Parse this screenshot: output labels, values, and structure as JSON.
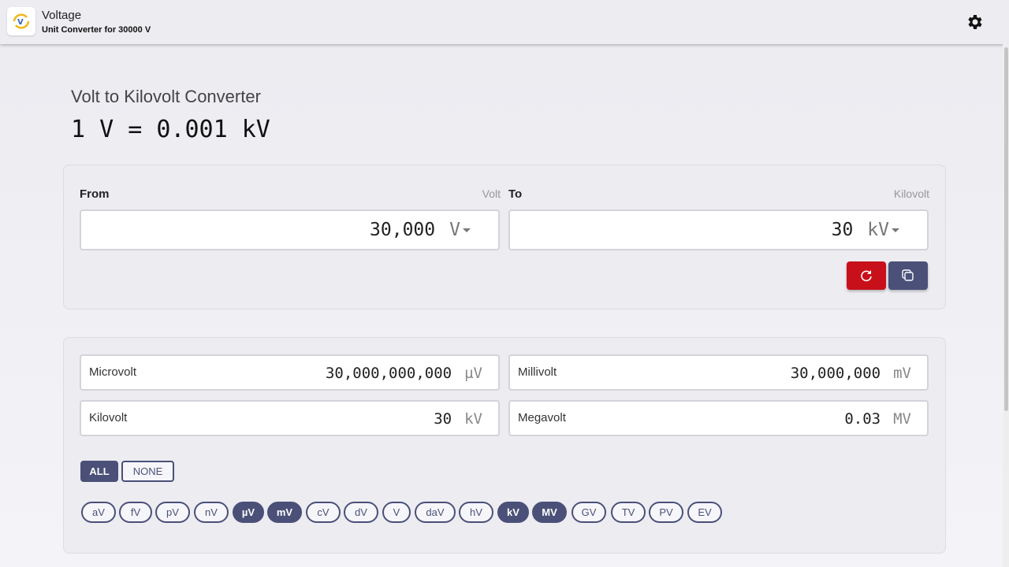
{
  "header": {
    "title": "Voltage",
    "subtitle": "Unit Converter for 30000 V",
    "logo_icon": "refresh-volt-icon",
    "settings_icon": "gear-icon"
  },
  "main": {
    "title": "Volt to Kilovolt Converter",
    "formula": "1 V = 0.001 kV"
  },
  "converter": {
    "from_label": "From",
    "from_unit_name": "Volt",
    "from_value": "30,000",
    "from_unit": "V",
    "to_label": "To",
    "to_unit_name": "Kilovolt",
    "to_value": "30",
    "to_unit": "kV",
    "reset_icon": "refresh-icon",
    "copy_icon": "copy-icon",
    "accent_reset": "#c8101a",
    "accent_primary": "#4a5078"
  },
  "results": [
    {
      "name": "Microvolt",
      "value": "30,000,000,000",
      "unit": "µV"
    },
    {
      "name": "Millivolt",
      "value": "30,000,000",
      "unit": "mV"
    },
    {
      "name": "Kilovolt",
      "value": "30",
      "unit": "kV"
    },
    {
      "name": "Megavolt",
      "value": "0.03",
      "unit": "MV"
    }
  ],
  "toggles": {
    "all": "ALL",
    "none": "NONE"
  },
  "chips": [
    {
      "label": "aV",
      "selected": false
    },
    {
      "label": "fV",
      "selected": false
    },
    {
      "label": "pV",
      "selected": false
    },
    {
      "label": "nV",
      "selected": false
    },
    {
      "label": "µV",
      "selected": true
    },
    {
      "label": "mV",
      "selected": true
    },
    {
      "label": "cV",
      "selected": false
    },
    {
      "label": "dV",
      "selected": false
    },
    {
      "label": "V",
      "selected": false
    },
    {
      "label": "daV",
      "selected": false
    },
    {
      "label": "hV",
      "selected": false
    },
    {
      "label": "kV",
      "selected": true
    },
    {
      "label": "MV",
      "selected": true
    },
    {
      "label": "GV",
      "selected": false
    },
    {
      "label": "TV",
      "selected": false
    },
    {
      "label": "PV",
      "selected": false
    },
    {
      "label": "EV",
      "selected": false
    }
  ]
}
